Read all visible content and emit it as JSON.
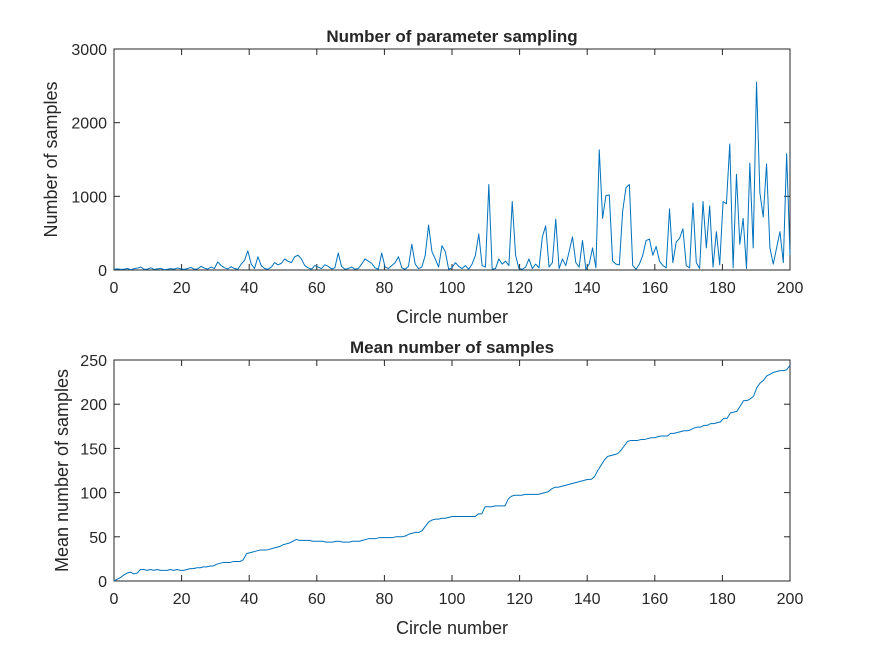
{
  "chart_data": [
    {
      "type": "line",
      "title": "Number of parameter sampling",
      "xlabel": "Circle number",
      "ylabel": "Number of samples",
      "xlim": [
        0,
        200
      ],
      "ylim": [
        0,
        3000
      ],
      "xticks": [
        0,
        20,
        40,
        60,
        80,
        100,
        120,
        140,
        160,
        180,
        200
      ],
      "yticks": [
        0,
        1000,
        2000,
        3000
      ],
      "grid": false,
      "color": "#0072BD",
      "series": [
        {
          "values": [
            10,
            15,
            8,
            12,
            20,
            5,
            18,
            25,
            40,
            10,
            12,
            30,
            8,
            15,
            22,
            5,
            10,
            18,
            12,
            28,
            15,
            8,
            20,
            35,
            10,
            15,
            50,
            25,
            12,
            40,
            20,
            110,
            60,
            30,
            15,
            45,
            20,
            10,
            80,
            130,
            260,
            80,
            20,
            180,
            60,
            20,
            10,
            40,
            100,
            70,
            90,
            150,
            120,
            100,
            180,
            200,
            150,
            60,
            30,
            10,
            60,
            40,
            20,
            70,
            50,
            15,
            30,
            230,
            50,
            10,
            20,
            40,
            10,
            20,
            80,
            150,
            120,
            90,
            30,
            10,
            230,
            40,
            20,
            60,
            100,
            180,
            30,
            10,
            50,
            350,
            80,
            20,
            40,
            200,
            610,
            250,
            150,
            40,
            330,
            250,
            10,
            30,
            100,
            50,
            20,
            60,
            10,
            80,
            200,
            490,
            60,
            40,
            1160,
            10,
            20,
            150,
            80,
            120,
            60,
            930,
            200,
            20,
            10,
            40,
            150,
            20,
            80,
            30,
            450,
            600,
            40,
            100,
            690,
            20,
            150,
            60,
            250,
            450,
            100,
            40,
            400,
            10,
            80,
            300,
            30,
            1630,
            700,
            1010,
            1020,
            120,
            80,
            70,
            800,
            1120,
            1160,
            60,
            10,
            80,
            200,
            400,
            420,
            200,
            320,
            120,
            60,
            30,
            830,
            100,
            380,
            430,
            560,
            60,
            30,
            910,
            100,
            20,
            930,
            300,
            870,
            40,
            520,
            70,
            930,
            900,
            1710,
            30,
            1300,
            350,
            700,
            20,
            1450,
            300,
            2550,
            1050,
            720,
            1440,
            300,
            80,
            300,
            520,
            100,
            1580,
            200
          ]
        }
      ]
    },
    {
      "type": "line",
      "title": "Mean number of samples",
      "xlabel": "Circle number",
      "ylabel": "Mean number of samples",
      "xlim": [
        0,
        200
      ],
      "ylim": [
        0,
        250
      ],
      "xticks": [
        0,
        20,
        40,
        60,
        80,
        100,
        120,
        140,
        160,
        180,
        200
      ],
      "yticks": [
        0,
        50,
        100,
        150,
        200,
        250
      ],
      "grid": false,
      "color": "#0072BD",
      "series": [
        {
          "values": [
            0,
            2,
            4,
            7,
            9,
            10,
            8,
            9,
            13,
            13,
            12,
            13,
            12,
            13,
            12,
            12,
            12,
            13,
            12,
            13,
            12,
            12,
            13,
            14,
            14,
            15,
            15,
            16,
            16,
            17,
            17,
            19,
            20,
            21,
            21,
            21,
            22,
            22,
            22,
            24,
            31,
            32,
            33,
            34,
            35,
            35,
            35,
            36,
            37,
            38,
            39,
            41,
            42,
            43,
            45,
            47,
            46,
            46,
            46,
            46,
            45,
            45,
            45,
            45,
            44,
            44,
            44,
            45,
            45,
            44,
            44,
            44,
            45,
            45,
            45,
            46,
            47,
            48,
            48,
            48,
            49,
            49,
            49,
            49,
            49,
            50,
            50,
            50,
            51,
            53,
            54,
            55,
            55,
            57,
            62,
            67,
            69,
            70,
            70,
            71,
            71,
            72,
            73,
            73,
            73,
            73,
            73,
            73,
            73,
            73,
            76,
            76,
            84,
            84,
            84,
            85,
            85,
            85,
            85,
            93,
            96,
            97,
            97,
            97,
            98,
            98,
            98,
            98,
            98,
            99,
            100,
            101,
            104,
            106,
            106,
            107,
            108,
            109,
            110,
            111,
            112,
            113,
            114,
            115,
            115,
            118,
            125,
            131,
            137,
            141,
            142,
            143,
            144,
            148,
            153,
            158,
            159,
            159,
            159,
            160,
            160,
            161,
            162,
            162,
            163,
            164,
            164,
            164,
            167,
            167,
            168,
            169,
            170,
            170,
            171,
            173,
            174,
            174,
            176,
            176,
            178,
            178,
            179,
            180,
            184,
            184,
            190,
            191,
            192,
            198,
            204,
            204,
            206,
            209,
            219,
            224,
            227,
            232,
            234,
            236,
            237,
            238,
            238,
            239,
            244
          ]
        }
      ]
    }
  ]
}
